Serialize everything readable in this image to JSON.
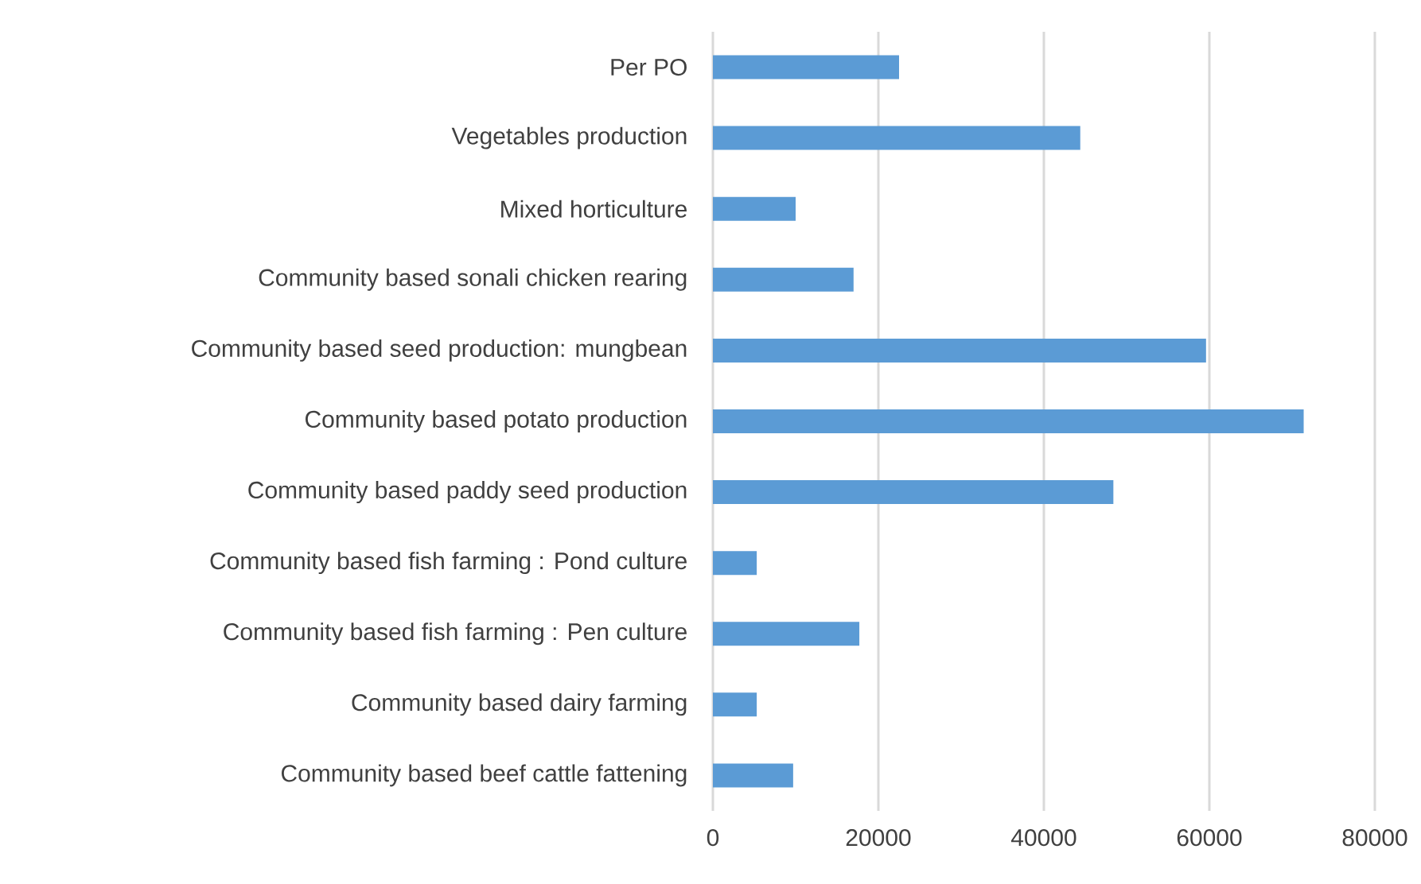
{
  "chart_data": {
    "type": "bar",
    "orientation": "horizontal",
    "categories": [
      "Per PO",
      "Vegetables production",
      "Mixed horticulture",
      "Community based sonali chicken rearing",
      "Community based seed production: mungbean",
      "Community based potato production",
      "Community based paddy seed production",
      "Community based fish farming : Pond culture",
      "Community based fish farming : Pen culture",
      "Community based dairy farming",
      "Community based beef cattle fattening"
    ],
    "values": [
      22500,
      44400,
      10000,
      17000,
      59600,
      71400,
      48400,
      5300,
      17700,
      5300,
      9700
    ],
    "color": "#5b9bd5",
    "xlim": [
      0,
      80000
    ],
    "xticks": [
      0,
      20000,
      40000,
      60000,
      80000
    ],
    "grid": "x"
  }
}
